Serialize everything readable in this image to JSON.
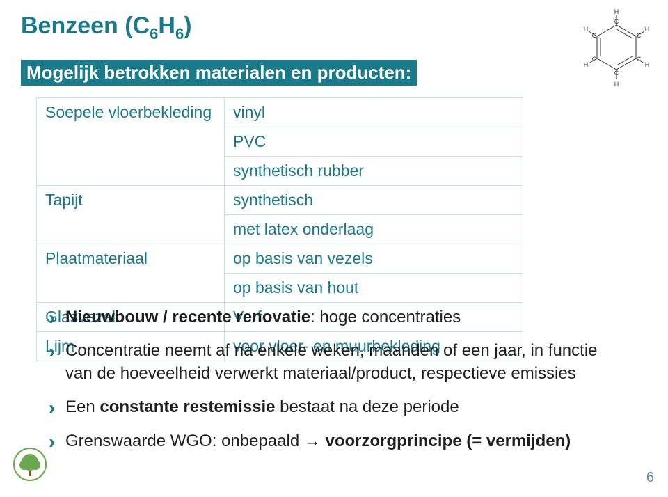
{
  "title": {
    "compound": "Benzeen",
    "formula_prefix": "C",
    "n1": "6",
    "mid": "H",
    "n2": "6"
  },
  "title_color": "#1a7a8a",
  "subtitle": "Mogelijk betrokken materialen en producten:",
  "subtitle_bg": "#1a7a8a",
  "subtitle_color": "#ffffff",
  "table": {
    "border_color": "#c8e0e4",
    "text_color": "#1a7a8a",
    "rows": [
      {
        "left": "Soepele vloerbekleding",
        "right": [
          "vinyl",
          "PVC",
          "synthetisch rubber"
        ]
      },
      {
        "left": "Tapijt",
        "right": [
          "synthetisch",
          "met latex onderlaag"
        ]
      },
      {
        "left": "Plaatmateriaal",
        "right": [
          "op basis van vezels",
          "op basis van hout"
        ]
      },
      {
        "left": "Glasvezel",
        "right": [
          "Verf"
        ]
      },
      {
        "left": "Lijm",
        "right": [
          "voor vloer- en muurbekleding"
        ]
      }
    ]
  },
  "bullets": [
    {
      "html": "<b>Nieuwbouw / recente renovatie</b>: hoge concentraties"
    },
    {
      "html": "Concentratie neemt af na enkele weken, maanden of een jaar, in functie van de hoeveelheid verwerkt materiaal/product, respectieve emissies"
    },
    {
      "html": "Een <b>constante restemissie</b> bestaat na deze periode"
    },
    {
      "html": "Grenswaarde WGO: onbepaald → <b>voorzorgprincipe (= vermijden)</b>"
    }
  ],
  "bullet_marker_color": "#1a7a8a",
  "page_number": "6",
  "page_number_color": "#5a8aa0",
  "structure_colors": {
    "line": "#333333",
    "label": "#333333"
  },
  "tree_icon_colors": {
    "ring": "#6aa84f",
    "trunk": "#8b5a2b",
    "leaf": "#6aa84f"
  }
}
